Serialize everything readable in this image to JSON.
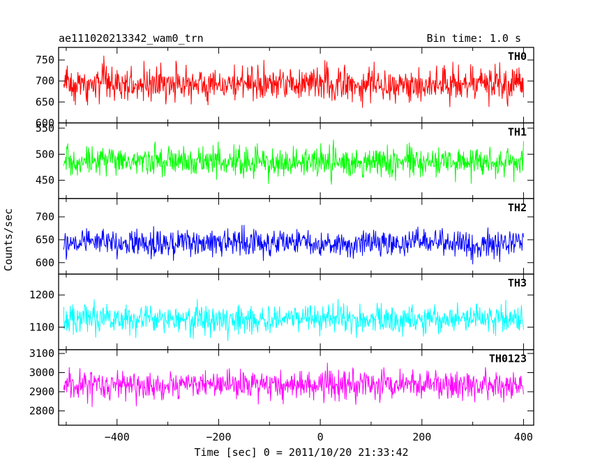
{
  "header": {
    "title": "ae111020213342_wam0_trn",
    "bin_time": "Bin time: 1.0 s"
  },
  "chart_data": {
    "type": "line",
    "title": "ae111020213342_wam0_trn",
    "subtitle": "Bin time: 1.0 s",
    "xlabel": "Time [sec] 0 = 2011/10/20 21:33:42",
    "ylabel": "Counts/sec",
    "xlim": [
      -515,
      420
    ],
    "xticks": [
      -400,
      -200,
      0,
      200,
      400
    ],
    "xtick_labels": [
      "−400",
      "−200",
      "0",
      "200",
      "400"
    ],
    "x_start": -505,
    "x_end": 400,
    "bin_time": 1.0,
    "panels": [
      {
        "name": "TH0",
        "color": "#ff0000",
        "ylim": [
          600,
          780
        ],
        "mean": 693,
        "spread": 85,
        "yticks": [
          600,
          650,
          700,
          750
        ],
        "ytick_labels": [
          "600",
          "650",
          "700",
          "750"
        ]
      },
      {
        "name": "TH1",
        "color": "#00ff00",
        "ylim": [
          415,
          560
        ],
        "mean": 485,
        "spread": 60,
        "yticks": [
          450,
          500,
          550
        ],
        "ytick_labels": [
          "450",
          "500",
          "550"
        ]
      },
      {
        "name": "TH2",
        "color": "#0000ff",
        "ylim": [
          575,
          740
        ],
        "mean": 643,
        "spread": 60,
        "yticks": [
          600,
          650,
          700
        ],
        "ytick_labels": [
          "600",
          "650",
          "700"
        ]
      },
      {
        "name": "TH3",
        "color": "#00ffff",
        "ylim": [
          1030,
          1265
        ],
        "mean": 1125,
        "spread": 95,
        "yticks": [
          1100,
          1200
        ],
        "ytick_labels": [
          "1100",
          "1200"
        ]
      },
      {
        "name": "TH0123",
        "color": "#ff00ff",
        "ylim": [
          2725,
          3120
        ],
        "mean": 2935,
        "spread": 160,
        "yticks": [
          2800,
          2900,
          3000,
          3100
        ],
        "ytick_labels": [
          "2800",
          "2900",
          "3000",
          "3100"
        ]
      }
    ]
  }
}
